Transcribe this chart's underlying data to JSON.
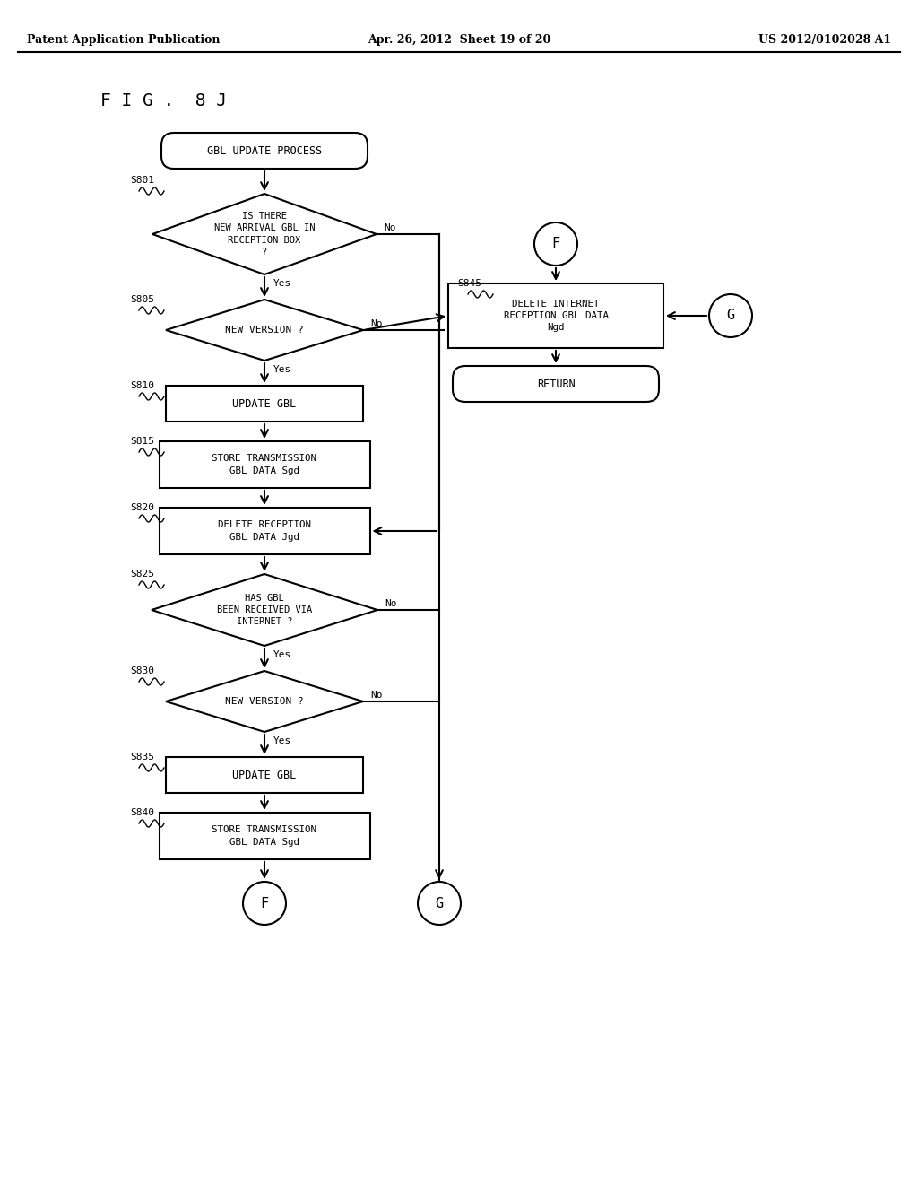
{
  "bg_color": "#ffffff",
  "line_color": "#000000",
  "header_left": "Patent Application Publication",
  "header_mid": "Apr. 26, 2012  Sheet 19 of 20",
  "header_right": "US 2012/0102028 A1",
  "fig_label": "F I G .  8 J"
}
